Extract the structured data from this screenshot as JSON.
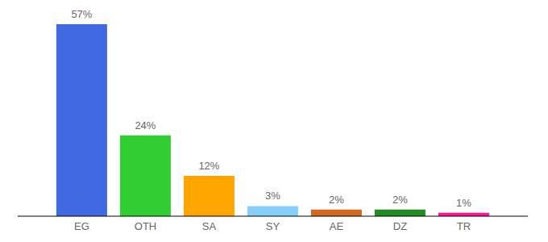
{
  "chart_data": {
    "type": "bar",
    "categories": [
      "EG",
      "OTH",
      "SA",
      "SY",
      "AE",
      "DZ",
      "TR"
    ],
    "values": [
      57,
      24,
      12,
      3,
      2,
      2,
      1
    ],
    "value_labels": [
      "57%",
      "24%",
      "12%",
      "3%",
      "2%",
      "2%",
      "1%"
    ],
    "colors": [
      "#4169e1",
      "#32cd32",
      "#ffa500",
      "#87cefa",
      "#d2691e",
      "#228b22",
      "#ff1493"
    ],
    "ylim": [
      0,
      57
    ],
    "data_labels": true,
    "tick_labels": "x",
    "grid": false
  }
}
